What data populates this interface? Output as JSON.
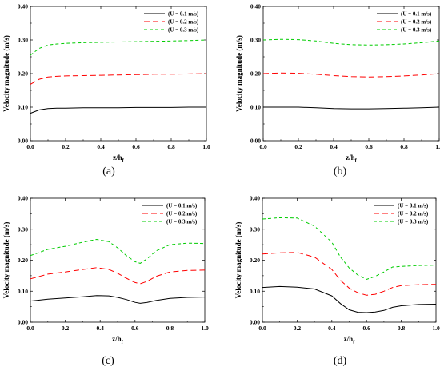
{
  "chart_data": [
    {
      "type": "line",
      "panel_label": "(a)",
      "xlabel": "z/h",
      "xlabel_sub": "f",
      "ylabel": "Velocity magnitude (m/s)",
      "xlim": [
        0,
        1
      ],
      "ylim": [
        0,
        0.4
      ],
      "xticks": [
        "0.0",
        "0.2",
        "0.4",
        "0.6",
        "0.8",
        "1.0"
      ],
      "yticks": [
        "0.00",
        "0.10",
        "0.20",
        "0.30",
        "0.40"
      ],
      "legend_position": "top-right",
      "x": [
        0.0,
        0.05,
        0.1,
        0.15,
        0.2,
        0.3,
        0.4,
        0.5,
        0.6,
        0.7,
        0.8,
        0.9,
        1.0
      ],
      "series": [
        {
          "name": "(U = 0.1 m/s)",
          "color": "#000000",
          "dash": "solid",
          "values": [
            0.082,
            0.092,
            0.096,
            0.097,
            0.097,
            0.098,
            0.098,
            0.098,
            0.099,
            0.099,
            0.099,
            0.1,
            0.1
          ]
        },
        {
          "name": "(U = 0.2 m/s)",
          "color": "#ff0000",
          "dash": "long",
          "values": [
            0.168,
            0.183,
            0.19,
            0.192,
            0.193,
            0.194,
            0.195,
            0.196,
            0.197,
            0.198,
            0.198,
            0.199,
            0.2
          ]
        },
        {
          "name": "(U = 0.3 m/s)",
          "color": "#00cc00",
          "dash": "short",
          "values": [
            0.255,
            0.275,
            0.285,
            0.288,
            0.29,
            0.292,
            0.293,
            0.294,
            0.295,
            0.296,
            0.297,
            0.298,
            0.3
          ]
        }
      ]
    },
    {
      "type": "line",
      "panel_label": "(b)",
      "xlabel": "z/h",
      "xlabel_sub": "f",
      "ylabel": "Velocity magnitude (m/s)",
      "xlim": [
        0,
        1
      ],
      "ylim": [
        0,
        0.4
      ],
      "xticks": [
        "0.0",
        "0.2",
        "0.4",
        "0.6",
        "0.8",
        "1.0"
      ],
      "yticks": [
        "0.00",
        "0.10",
        "0.20",
        "0.30",
        "0.40"
      ],
      "legend_position": "top-right",
      "x": [
        0.0,
        0.1,
        0.2,
        0.3,
        0.4,
        0.5,
        0.6,
        0.7,
        0.8,
        0.9,
        1.0
      ],
      "series": [
        {
          "name": "(U = 0.1 m/s)",
          "color": "#000000",
          "dash": "solid",
          "values": [
            0.1,
            0.1,
            0.1,
            0.098,
            0.096,
            0.095,
            0.095,
            0.096,
            0.097,
            0.098,
            0.1
          ]
        },
        {
          "name": "(U = 0.2 m/s)",
          "color": "#ff0000",
          "dash": "long",
          "values": [
            0.2,
            0.202,
            0.201,
            0.198,
            0.194,
            0.191,
            0.19,
            0.191,
            0.193,
            0.196,
            0.2
          ]
        },
        {
          "name": "(U = 0.3 m/s)",
          "color": "#00cc00",
          "dash": "short",
          "values": [
            0.3,
            0.302,
            0.301,
            0.297,
            0.29,
            0.286,
            0.285,
            0.286,
            0.288,
            0.292,
            0.297
          ]
        }
      ]
    },
    {
      "type": "line",
      "panel_label": "(c)",
      "xlabel": "z/h",
      "xlabel_sub": "f",
      "ylabel": "Velocity magnitude (m/s)",
      "xlim": [
        0,
        1
      ],
      "ylim": [
        0,
        0.4
      ],
      "xticks": [
        "0.0",
        "0.2",
        "0.4",
        "0.6",
        "0.8",
        "1.0"
      ],
      "yticks": [
        "0.00",
        "0.10",
        "0.20",
        "0.30",
        "0.40"
      ],
      "legend_position": "top-right",
      "x": [
        0.0,
        0.1,
        0.2,
        0.3,
        0.38,
        0.45,
        0.5,
        0.55,
        0.6,
        0.63,
        0.67,
        0.72,
        0.8,
        0.9,
        1.0
      ],
      "series": [
        {
          "name": "(U = 0.1 m/s)",
          "color": "#000000",
          "dash": "solid",
          "values": [
            0.068,
            0.074,
            0.078,
            0.082,
            0.086,
            0.085,
            0.08,
            0.073,
            0.064,
            0.061,
            0.064,
            0.07,
            0.077,
            0.08,
            0.081
          ]
        },
        {
          "name": "(U = 0.2 m/s)",
          "color": "#ff0000",
          "dash": "long",
          "values": [
            0.14,
            0.155,
            0.162,
            0.17,
            0.176,
            0.17,
            0.158,
            0.142,
            0.128,
            0.124,
            0.132,
            0.148,
            0.162,
            0.167,
            0.168
          ]
        },
        {
          "name": "(U = 0.3 m/s)",
          "color": "#00cc00",
          "dash": "short",
          "values": [
            0.215,
            0.235,
            0.245,
            0.258,
            0.267,
            0.26,
            0.24,
            0.215,
            0.195,
            0.19,
            0.205,
            0.23,
            0.25,
            0.255,
            0.254
          ]
        }
      ]
    },
    {
      "type": "line",
      "panel_label": "(d)",
      "xlabel": "z/h",
      "xlabel_sub": "f",
      "ylabel": "Velocity magnitude (m/s)",
      "xlim": [
        0,
        1
      ],
      "ylim": [
        0,
        0.4
      ],
      "xticks": [
        "0.0",
        "0.2",
        "0.4",
        "0.6",
        "0.8",
        "1.0"
      ],
      "yticks": [
        "0.00",
        "0.10",
        "0.20",
        "0.30",
        "0.40"
      ],
      "legend_position": "top-right",
      "x": [
        0.0,
        0.1,
        0.2,
        0.3,
        0.4,
        0.45,
        0.5,
        0.55,
        0.6,
        0.65,
        0.7,
        0.75,
        0.8,
        0.9,
        1.0
      ],
      "series": [
        {
          "name": "(U = 0.1 m/s)",
          "color": "#000000",
          "dash": "solid",
          "values": [
            0.112,
            0.115,
            0.113,
            0.107,
            0.085,
            0.06,
            0.04,
            0.032,
            0.031,
            0.033,
            0.038,
            0.048,
            0.053,
            0.057,
            0.058
          ]
        },
        {
          "name": "(U = 0.2 m/s)",
          "color": "#ff0000",
          "dash": "long",
          "values": [
            0.22,
            0.224,
            0.225,
            0.21,
            0.17,
            0.135,
            0.11,
            0.095,
            0.087,
            0.09,
            0.1,
            0.112,
            0.118,
            0.121,
            0.122
          ]
        },
        {
          "name": "(U = 0.3 m/s)",
          "color": "#00cc00",
          "dash": "short",
          "values": [
            0.333,
            0.337,
            0.336,
            0.31,
            0.258,
            0.21,
            0.175,
            0.152,
            0.138,
            0.148,
            0.162,
            0.178,
            0.18,
            0.183,
            0.184
          ]
        }
      ]
    }
  ]
}
